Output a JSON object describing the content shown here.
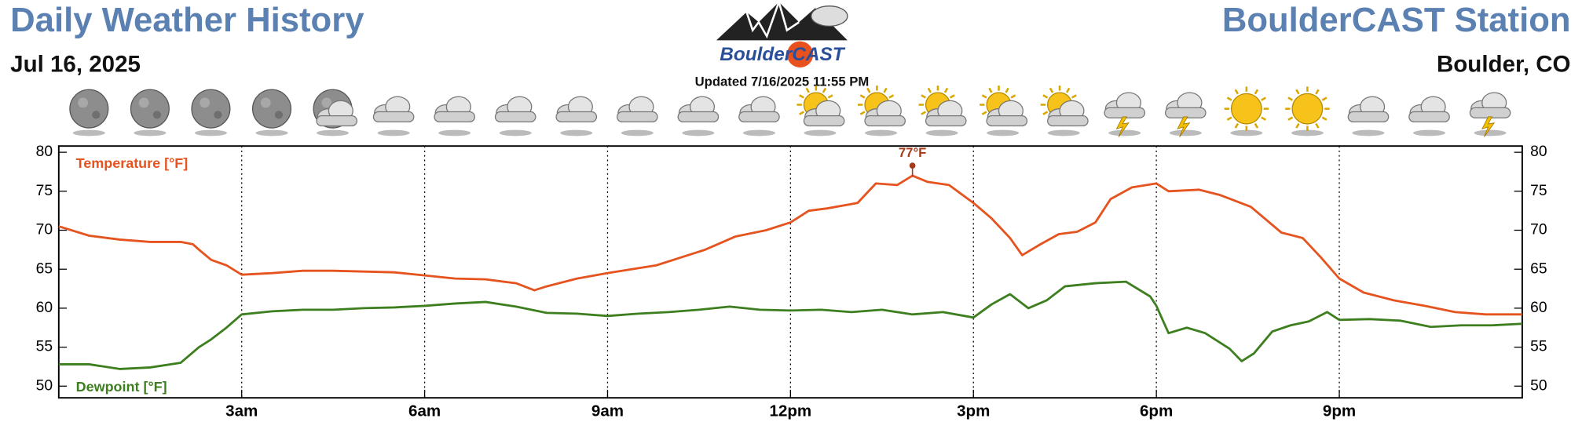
{
  "header": {
    "title": "Daily Weather History",
    "date": "Jul 16, 2025",
    "station": "BoulderCAST Station",
    "location": "Boulder, CO",
    "logo": "BoulderCAST",
    "updated": "Updated 7/16/2025 11:55 PM"
  },
  "chart_data": {
    "type": "line",
    "xlim": [
      0,
      24
    ],
    "xticks": [
      {
        "value": 3,
        "label": "3am"
      },
      {
        "value": 6,
        "label": "6am"
      },
      {
        "value": 9,
        "label": "9am"
      },
      {
        "value": 12,
        "label": "12pm"
      },
      {
        "value": 15,
        "label": "3pm"
      },
      {
        "value": 18,
        "label": "6pm"
      },
      {
        "value": 21,
        "label": "9pm"
      }
    ],
    "ylim": [
      48.5,
      80.8
    ],
    "yticks": [
      50,
      55,
      60,
      65,
      70,
      75,
      80
    ],
    "y2lim": [
      48.5,
      80.8
    ],
    "y2ticks": [
      50,
      55,
      60,
      65,
      70,
      75,
      80
    ],
    "grid": true,
    "series": [
      {
        "name": "Temperature [°F]",
        "color": "#e5531f",
        "x": [
          0,
          0.5,
          1,
          1.5,
          2,
          2.2,
          2.3,
          2.5,
          2.75,
          3,
          3.5,
          4,
          4.5,
          5,
          5.5,
          6,
          6.5,
          7,
          7.5,
          7.8,
          8,
          8.5,
          9,
          9.8,
          10.6,
          11.1,
          11.6,
          12,
          12.3,
          12.6,
          13.1,
          13.4,
          13.75,
          14,
          14.25,
          14.6,
          15,
          15.3,
          15.6,
          15.8,
          16.1,
          16.4,
          16.7,
          17,
          17.25,
          17.6,
          18,
          18.2,
          18.7,
          19.05,
          19.55,
          20.05,
          20.4,
          20.7,
          21,
          21.4,
          21.9,
          22.4,
          22.9,
          23.4,
          24
        ],
        "values": [
          70.5,
          69.3,
          68.8,
          68.5,
          68.5,
          68.2,
          67.5,
          66.2,
          65.5,
          64.3,
          64.5,
          64.8,
          64.8,
          64.7,
          64.6,
          64.2,
          63.8,
          63.7,
          63.2,
          62.3,
          62.8,
          63.8,
          64.5,
          65.5,
          67.5,
          69.2,
          70.0,
          71.0,
          72.5,
          72.8,
          73.5,
          76.0,
          75.8,
          77.0,
          76.2,
          75.8,
          73.5,
          71.5,
          69.0,
          66.8,
          68.2,
          69.5,
          69.8,
          71.0,
          74.0,
          75.5,
          76.0,
          75.0,
          75.2,
          74.5,
          73.0,
          69.7,
          69.0,
          66.5,
          63.8,
          62.0,
          61.0,
          60.3,
          59.5,
          59.2,
          59.2
        ]
      },
      {
        "name": "Dewpoint [°F]",
        "color": "#3d7f1f",
        "x": [
          0,
          0.5,
          1,
          1.5,
          2,
          2.3,
          2.5,
          2.75,
          3,
          3.5,
          4,
          4.5,
          5,
          5.5,
          6,
          6.5,
          7,
          7.5,
          8,
          8.5,
          9,
          9.5,
          10,
          10.5,
          11,
          11.5,
          12,
          12.5,
          13,
          13.5,
          14,
          14.5,
          15,
          15.3,
          15.6,
          15.9,
          16.2,
          16.5,
          17,
          17.5,
          17.9,
          18,
          18.2,
          18.5,
          18.8,
          19.2,
          19.4,
          19.6,
          19.9,
          20.2,
          20.5,
          20.8,
          21,
          21.5,
          22,
          22.5,
          23,
          23.5,
          24
        ],
        "values": [
          52.8,
          52.8,
          52.2,
          52.4,
          53.0,
          55.0,
          56.0,
          57.5,
          59.2,
          59.6,
          59.8,
          59.8,
          60.0,
          60.1,
          60.3,
          60.6,
          60.8,
          60.2,
          59.4,
          59.3,
          59.0,
          59.3,
          59.5,
          59.8,
          60.2,
          59.8,
          59.7,
          59.8,
          59.5,
          59.8,
          59.2,
          59.5,
          58.8,
          60.5,
          61.8,
          60.0,
          61.0,
          62.8,
          63.2,
          63.4,
          61.5,
          60.3,
          56.8,
          57.5,
          56.8,
          54.8,
          53.2,
          54.2,
          57.0,
          57.8,
          58.3,
          59.5,
          58.5,
          58.6,
          58.4,
          57.6,
          57.8,
          57.8,
          58.0
        ]
      }
    ],
    "annotations": [
      {
        "text": "77°F",
        "x": 14,
        "y": 77
      }
    ]
  }
}
